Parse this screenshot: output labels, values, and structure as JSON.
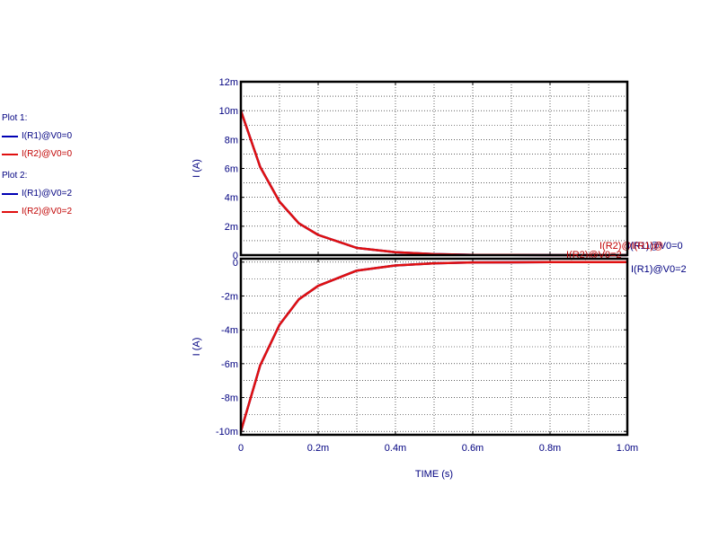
{
  "colors": {
    "I(R1)": "#0000b4",
    "I(R2)": "#e01010",
    "frame": "#000000",
    "grid": "#000000"
  },
  "legend": {
    "plot1_title": "Plot 1:",
    "plot1_entries": [
      "I(R1)@V0=0",
      "I(R2)@V0=0"
    ],
    "plot2_title": "Plot 2:",
    "plot2_entries": [
      "I(R1)@V0=2",
      "I(R2)@V0=2"
    ]
  },
  "chart_data": [
    {
      "type": "line",
      "xlabel": "TIME (s)",
      "ylabel": "I  (A)",
      "xlim": [
        0,
        0.001
      ],
      "ylim": [
        0,
        0.012
      ],
      "xticks": [
        0,
        0.0002,
        0.0004,
        0.0006,
        0.0008,
        0.001
      ],
      "xtick_labels": [
        "0",
        "0.2m",
        "0.4m",
        "0.6m",
        "0.8m",
        "1.0m"
      ],
      "yticks": [
        0,
        0.002,
        0.004,
        0.006,
        0.008,
        0.01,
        0.012
      ],
      "ytick_labels": [
        "0",
        "2m",
        "4m",
        "6m",
        "8m",
        "10m",
        "12m"
      ],
      "grid": true,
      "x": [
        0,
        5e-05,
        0.0001,
        0.00015,
        0.0002,
        0.0003,
        0.0004,
        0.0005,
        0.0006,
        0.0007,
        0.0008,
        0.0009,
        0.001
      ],
      "series": [
        {
          "name": "I(R1)@V0=0",
          "color_key": "I(R1)",
          "values": [
            0.01,
            0.0061,
            0.0037,
            0.0022,
            0.0014,
            0.0005,
            0.0002,
            7e-05,
            2e-05,
            1e-05,
            0,
            0,
            0
          ],
          "end_label": "I(R1)@V0=0"
        },
        {
          "name": "I(R2)@V0=0",
          "color_key": "I(R2)",
          "values": [
            0.01,
            0.0061,
            0.0037,
            0.0022,
            0.0014,
            0.0005,
            0.0002,
            7e-05,
            2e-05,
            1e-05,
            0,
            0,
            0
          ],
          "end_label": "I(R2)@I(R1)@"
        }
      ]
    },
    {
      "type": "line",
      "xlabel": "TIME (s)",
      "ylabel": "I  (A)",
      "xlim": [
        0,
        0.001
      ],
      "ylim": [
        -0.0102,
        0.0002
      ],
      "xticks": [
        0,
        0.0002,
        0.0004,
        0.0006,
        0.0008,
        0.001
      ],
      "xtick_labels": [
        "0",
        "0.2m",
        "0.4m",
        "0.6m",
        "0.8m",
        "1.0m"
      ],
      "yticks": [
        -0.01,
        -0.008,
        -0.006,
        -0.004,
        -0.002,
        0
      ],
      "ytick_labels": [
        "-10m",
        "-8m",
        "-6m",
        "-4m",
        "-2m",
        "0"
      ],
      "grid": true,
      "x": [
        0,
        5e-05,
        0.0001,
        0.00015,
        0.0002,
        0.0003,
        0.0004,
        0.0005,
        0.0006,
        0.0007,
        0.0008,
        0.0009,
        0.001
      ],
      "series": [
        {
          "name": "I(R1)@V0=2",
          "color_key": "I(R1)",
          "values": [
            -0.01,
            -0.0061,
            -0.0037,
            -0.0022,
            -0.0014,
            -0.0005,
            -0.0002,
            -7e-05,
            -2e-05,
            -1e-05,
            0,
            0,
            0
          ],
          "end_label": "I(R1)@V0=2"
        },
        {
          "name": "I(R2)@V0=2",
          "color_key": "I(R2)",
          "values": [
            -0.01,
            -0.0061,
            -0.0037,
            -0.0022,
            -0.0014,
            -0.0005,
            -0.0002,
            -7e-05,
            -2e-05,
            -1e-05,
            0,
            0,
            0
          ],
          "end_label": "I(R2)@V0=2"
        }
      ]
    }
  ]
}
